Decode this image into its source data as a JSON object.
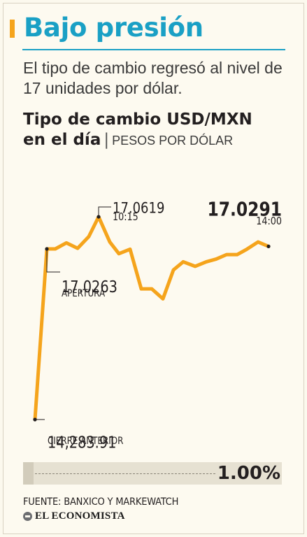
{
  "headline": "Bajo presión",
  "subtitle": "El tipo de cambio regresó al nivel de 17 unidades por dólar.",
  "chart_title_line1": "Tipo de cambio USD/MXN",
  "chart_title_line2": "en el día",
  "chart_title_separator": "|",
  "chart_unit": "PESOS POR DÓLAR",
  "colors": {
    "headline": "#1aa0c5",
    "line": "#f5a41c",
    "accent": "#f5a41c"
  },
  "chart_data": {
    "type": "line",
    "title": "Tipo de cambio USD/MXN en el día",
    "unit": "PESOS POR DÓLAR",
    "series": [
      {
        "values": [
          16.9,
          17.0263,
          17.0263,
          17.033,
          17.027,
          17.04,
          17.0619,
          17.034,
          17.021,
          17.026,
          16.982,
          16.982,
          16.971,
          17.003,
          17.012,
          17.007,
          17.012,
          17.015,
          17.02,
          17.02,
          17.026,
          17.034,
          17.0291
        ]
      }
    ],
    "annotations": [
      {
        "value": "17.0619",
        "label": "10:15"
      },
      {
        "value": "17.0263",
        "label": "APERTURA"
      },
      {
        "value": "14,283.91",
        "label": "CIERRE ANTERIOR"
      },
      {
        "value": "17.0291",
        "label": "14:00"
      }
    ],
    "grid": false,
    "legend": "none"
  },
  "variation": {
    "value": "1.00%",
    "fill_fraction": 0.04
  },
  "source": "FUENTE: BANXICO Y MARKEWATCH",
  "brand": "EL ECONOMISTA"
}
